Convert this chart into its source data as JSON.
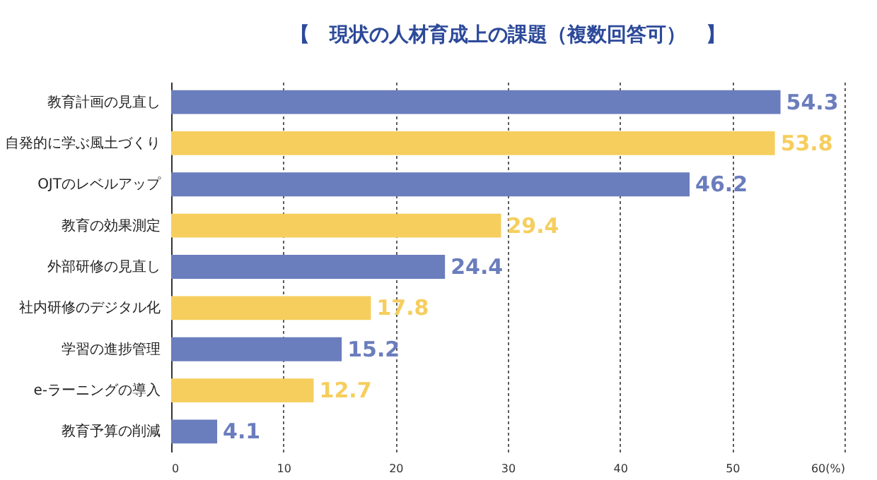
{
  "chart_data": {
    "type": "bar",
    "orientation": "horizontal",
    "title": "【　現状の人材育成上の課題（複数回答可）　】",
    "categories": [
      "教育計画の見直し",
      "自発的に学ぶ風土づくり",
      "OJTのレベルアップ",
      "教育の効果測定",
      "外部研修の見直し",
      "社内研修のデジタル化",
      "学習の進捗管理",
      "e-ラーニングの導入",
      "教育予算の削減"
    ],
    "values": [
      54.3,
      53.8,
      46.2,
      29.4,
      24.4,
      17.8,
      15.2,
      12.7,
      4.1
    ],
    "colors": [
      "#6a7dbd",
      "#f6ce5e",
      "#6a7dbd",
      "#f6ce5e",
      "#6a7dbd",
      "#f6ce5e",
      "#6a7dbd",
      "#f6ce5e",
      "#6a7dbd"
    ],
    "xlim": [
      0,
      60
    ],
    "xticks": [
      0,
      10,
      20,
      30,
      40,
      50,
      {
        "value": 60,
        "label": "60(%)"
      }
    ],
    "grid": "x",
    "data_labels": true
  }
}
